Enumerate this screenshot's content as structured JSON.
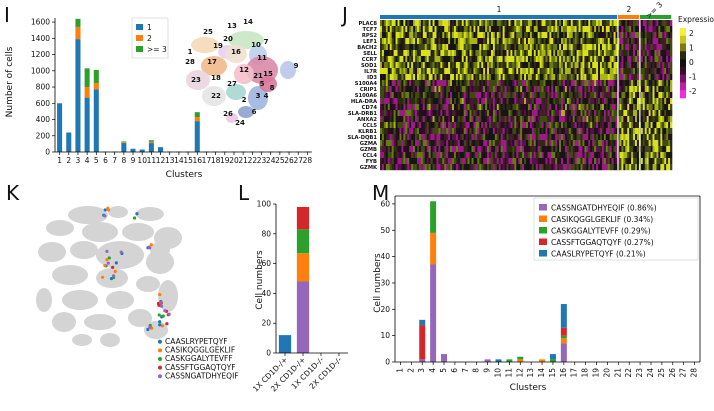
{
  "panel_labels": {
    "I": "I",
    "J": "J",
    "K": "K",
    "L": "L",
    "M": "M"
  },
  "colors": {
    "c1": "#1f77b4",
    "c2": "#ff7f0e",
    "c3": "#2ca02c",
    "c4": "#d62728",
    "c5": "#9467bd"
  },
  "chart_data": [
    {
      "id": "I",
      "type": "bar",
      "stacked": true,
      "xlabel": "Clusters",
      "ylabel": "Number of cells",
      "ylim": [
        0,
        1650
      ],
      "yticks": [
        0,
        200,
        400,
        600,
        800,
        1000,
        1200,
        1400,
        1600
      ],
      "categories": [
        "1",
        "2",
        "3",
        "4",
        "5",
        "6",
        "7",
        "8",
        "9",
        "10",
        "11",
        "12",
        "13",
        "14",
        "15",
        "16",
        "17",
        "18",
        "19",
        "20",
        "21",
        "22",
        "23",
        "24",
        "25",
        "26",
        "27",
        "28"
      ],
      "legend_title": "",
      "series": [
        {
          "name": "1",
          "color": "#1f77b4",
          "values": [
            600,
            240,
            1390,
            670,
            770,
            5,
            5,
            110,
            40,
            30,
            110,
            60,
            5,
            5,
            5,
            380,
            5,
            5,
            5,
            5,
            5,
            5,
            5,
            5,
            5,
            5,
            5,
            5
          ]
        },
        {
          "name": "2",
          "color": "#ff7f0e",
          "values": [
            0,
            0,
            150,
            130,
            80,
            0,
            0,
            10,
            0,
            0,
            15,
            0,
            0,
            0,
            0,
            50,
            0,
            0,
            0,
            0,
            0,
            0,
            0,
            0,
            0,
            0,
            0,
            0
          ]
        },
        {
          "name": ">= 3",
          "color": "#2ca02c",
          "values": [
            0,
            0,
            100,
            230,
            160,
            0,
            0,
            10,
            0,
            0,
            20,
            0,
            0,
            0,
            0,
            60,
            0,
            0,
            0,
            0,
            0,
            0,
            0,
            0,
            0,
            0,
            0,
            0
          ]
        }
      ],
      "inset_umap_labels": [
        "13",
        "14",
        "25",
        "20",
        "19",
        "1",
        "28",
        "17",
        "16",
        "10",
        "7",
        "11",
        "12",
        "15",
        "23",
        "18",
        "22",
        "27",
        "5",
        "4",
        "9",
        "8",
        "3",
        "2",
        "6",
        "26",
        "24",
        "21"
      ]
    },
    {
      "id": "J",
      "type": "heatmap",
      "column_groups": [
        "1",
        "2",
        ">= 3"
      ],
      "genes": [
        "PLAC8",
        "TCF7",
        "RPS2",
        "LEF1",
        "BACH2",
        "SELL",
        "CCR7",
        "SOD1",
        "IL7R",
        "ID3",
        "S100A4",
        "CRIP1",
        "S100A6",
        "HLA-DRA",
        "CD74",
        "SLA-DRB1",
        "ANXA2",
        "CCL5",
        "KLRB1",
        "SLA-DQB1",
        "GZMA",
        "GZMB",
        "CCL4",
        "FYB",
        "GZMK"
      ],
      "colorbar_title": "Expression",
      "colorbar_ticks": [
        2,
        1,
        0,
        -1,
        -2
      ]
    },
    {
      "id": "K",
      "type": "scatter",
      "legend": [
        "CAASLRYPETQYF",
        "CASIKQGGLGEKLIF",
        "CASKGGALYTEVFF",
        "CASSFTGGAQTQYF",
        "CASSNGATDHYEQIF"
      ]
    },
    {
      "id": "L",
      "type": "bar",
      "stacked": true,
      "ylabel": "Cell numbers",
      "ylim": [
        0,
        100
      ],
      "yticks": [
        0,
        20,
        40,
        60,
        80,
        100
      ],
      "categories": [
        "1X CD1D-/+",
        "2X CD1D-/+",
        "1X CD1D-/-",
        "2X CD1D-/-"
      ],
      "series": [
        {
          "name": "c1",
          "color": "#1f77b4",
          "values": [
            12,
            0,
            0,
            0
          ]
        },
        {
          "name": "c5",
          "color": "#9467bd",
          "values": [
            0,
            48,
            0,
            0
          ]
        },
        {
          "name": "c2",
          "color": "#ff7f0e",
          "values": [
            0,
            19,
            0,
            0
          ]
        },
        {
          "name": "c3",
          "color": "#2ca02c",
          "values": [
            0,
            16,
            0,
            0
          ]
        },
        {
          "name": "c4",
          "color": "#d62728",
          "values": [
            0,
            15,
            0,
            0
          ]
        }
      ]
    },
    {
      "id": "M",
      "type": "bar",
      "stacked": true,
      "xlabel": "Clusters",
      "ylabel": "Cell numbers",
      "ylim": [
        0,
        63
      ],
      "yticks": [
        0,
        10,
        20,
        30,
        40,
        50,
        60
      ],
      "categories": [
        "1",
        "2",
        "3",
        "4",
        "5",
        "6",
        "7",
        "8",
        "9",
        "10",
        "11",
        "12",
        "13",
        "14",
        "15",
        "16",
        "17",
        "18",
        "19",
        "20",
        "21",
        "22",
        "23",
        "24",
        "25",
        "26",
        "27",
        "28"
      ],
      "series": [
        {
          "name": "CASSNGATDHYEQIF (0.86%)",
          "color": "#9467bd",
          "values": [
            0,
            0,
            1,
            37,
            3,
            0,
            0,
            0,
            1,
            0,
            0,
            0,
            0,
            0,
            0,
            7,
            0,
            0,
            0,
            0,
            0,
            0,
            0,
            0,
            0,
            0,
            0,
            0
          ]
        },
        {
          "name": "CASIKQGGLGEKLIF (0.34%)",
          "color": "#ff7f0e",
          "values": [
            0,
            0,
            0,
            12,
            0,
            0,
            0,
            0,
            0,
            0,
            0,
            1,
            0,
            1,
            0,
            2,
            0,
            0,
            0,
            0,
            0,
            0,
            0,
            0,
            0,
            0,
            0,
            0
          ]
        },
        {
          "name": "CASKGGALYTEVFF (0.29%)",
          "color": "#2ca02c",
          "values": [
            0,
            0,
            0,
            12,
            0,
            0,
            0,
            0,
            0,
            0,
            1,
            1,
            0,
            0,
            1,
            1,
            0,
            0,
            0,
            0,
            0,
            0,
            0,
            0,
            0,
            0,
            0,
            0
          ]
        },
        {
          "name": "CASSFTGGAQTQYF (0.27%)",
          "color": "#d62728",
          "values": [
            0,
            0,
            13,
            0,
            0,
            0,
            0,
            0,
            0,
            0,
            0,
            0,
            0,
            0,
            0,
            3,
            0,
            0,
            0,
            0,
            0,
            0,
            0,
            0,
            0,
            0,
            0,
            0
          ]
        },
        {
          "name": "CAASLRYPETQYF (0.21%)",
          "color": "#1f77b4",
          "values": [
            0,
            0,
            2,
            0,
            0,
            0,
            0,
            0,
            0,
            1,
            0,
            0,
            0,
            0,
            2,
            9,
            0,
            0,
            0,
            0,
            0,
            0,
            0,
            0,
            0,
            0,
            0,
            0
          ]
        }
      ]
    }
  ]
}
